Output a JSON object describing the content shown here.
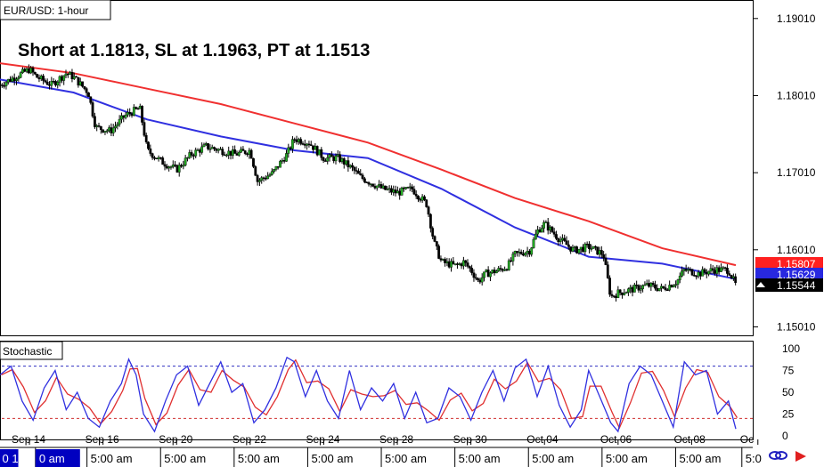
{
  "chart_data": {
    "type": "candlestick",
    "symbol_label": "EUR/USD: 1-hour",
    "headline": "Short at 1.1813, SL at 1.1963, PT at 1.1513",
    "price_axis": {
      "ylim": [
        1.149,
        1.1925
      ],
      "ticks": [
        "1.19010",
        "1.18010",
        "1.17010",
        "1.16010",
        "1.15010"
      ]
    },
    "x_range": [
      0,
      100
    ],
    "date_labels": [
      {
        "x": 4,
        "label": "Sep 14"
      },
      {
        "x": 14,
        "label": "Sep 16"
      },
      {
        "x": 24,
        "label": "Sep 20"
      },
      {
        "x": 34,
        "label": "Sep 22"
      },
      {
        "x": 44,
        "label": "Sep 24"
      },
      {
        "x": 54,
        "label": "Sep 28"
      },
      {
        "x": 64,
        "label": "Sep 30"
      },
      {
        "x": 74,
        "label": "Oct 04"
      },
      {
        "x": 84,
        "label": "Oct 06"
      },
      {
        "x": 94,
        "label": "Oct 08"
      },
      {
        "x": 103,
        "label": "Oc"
      }
    ],
    "time_labels": [
      {
        "x": 2,
        "label": "0 1",
        "selected": true
      },
      {
        "x": 7,
        "label": "0 am",
        "selected": true
      },
      {
        "x": 14,
        "label": "5:00 am"
      },
      {
        "x": 24,
        "label": "5:00 am"
      },
      {
        "x": 34,
        "label": "5:00 am"
      },
      {
        "x": 44,
        "label": "5:00 am"
      },
      {
        "x": 54,
        "label": "5:00 am"
      },
      {
        "x": 64,
        "label": "5:00 am"
      },
      {
        "x": 74,
        "label": "5:00 am"
      },
      {
        "x": 84,
        "label": "5:00 am"
      },
      {
        "x": 94,
        "label": "5:00 am"
      },
      {
        "x": 103,
        "label": "5:0"
      }
    ],
    "price_path": [
      [
        0,
        1.1815
      ],
      [
        2,
        1.1825
      ],
      [
        4,
        1.1835
      ],
      [
        5,
        1.1825
      ],
      [
        7,
        1.1815
      ],
      [
        9,
        1.183
      ],
      [
        10,
        1.1825
      ],
      [
        12,
        1.1805
      ],
      [
        13,
        1.176
      ],
      [
        15,
        1.1755
      ],
      [
        17,
        1.1775
      ],
      [
        19,
        1.1785
      ],
      [
        20,
        1.173
      ],
      [
        22,
        1.1715
      ],
      [
        24,
        1.1705
      ],
      [
        26,
        1.1725
      ],
      [
        28,
        1.1735
      ],
      [
        30,
        1.173
      ],
      [
        32,
        1.1725
      ],
      [
        34,
        1.173
      ],
      [
        35,
        1.169
      ],
      [
        37,
        1.17
      ],
      [
        39,
        1.1725
      ],
      [
        40,
        1.1745
      ],
      [
        42,
        1.174
      ],
      [
        43,
        1.173
      ],
      [
        44,
        1.172
      ],
      [
        46,
        1.172
      ],
      [
        48,
        1.1705
      ],
      [
        49,
        1.1695
      ],
      [
        50,
        1.169
      ],
      [
        52,
        1.168
      ],
      [
        54,
        1.1675
      ],
      [
        56,
        1.168
      ],
      [
        58,
        1.166
      ],
      [
        59,
        1.161
      ],
      [
        60,
        1.1585
      ],
      [
        62,
        1.158
      ],
      [
        63,
        1.1585
      ],
      [
        64,
        1.1575
      ],
      [
        65,
        1.156
      ],
      [
        66,
        1.157
      ],
      [
        68,
        1.1575
      ],
      [
        69,
        1.158
      ],
      [
        70,
        1.1595
      ],
      [
        72,
        1.16
      ],
      [
        73,
        1.1625
      ],
      [
        74,
        1.1635
      ],
      [
        76,
        1.1615
      ],
      [
        78,
        1.16
      ],
      [
        80,
        1.1605
      ],
      [
        82,
        1.1595
      ],
      [
        83,
        1.154
      ],
      [
        84,
        1.1545
      ],
      [
        86,
        1.155
      ],
      [
        88,
        1.1555
      ],
      [
        90,
        1.155
      ],
      [
        92,
        1.156
      ],
      [
        93,
        1.1575
      ],
      [
        95,
        1.157
      ],
      [
        97,
        1.1575
      ],
      [
        99,
        1.1575
      ],
      [
        100,
        1.1555
      ]
    ],
    "series": [
      {
        "name": "",
        "color": "#f03030",
        "values": [
          [
            0,
            1.1843
          ],
          [
            10,
            1.183
          ],
          [
            20,
            1.181
          ],
          [
            30,
            1.179
          ],
          [
            40,
            1.1765
          ],
          [
            50,
            1.174
          ],
          [
            60,
            1.1705
          ],
          [
            70,
            1.1668
          ],
          [
            80,
            1.1638
          ],
          [
            90,
            1.1603
          ],
          [
            100,
            1.1581
          ]
        ]
      },
      {
        "name": "",
        "color": "#3030e0",
        "values": [
          [
            0,
            1.1822
          ],
          [
            10,
            1.1805
          ],
          [
            20,
            1.177
          ],
          [
            30,
            1.1748
          ],
          [
            40,
            1.173
          ],
          [
            50,
            1.172
          ],
          [
            60,
            1.168
          ],
          [
            70,
            1.163
          ],
          [
            80,
            1.1592
          ],
          [
            90,
            1.1583
          ],
          [
            100,
            1.1563
          ]
        ]
      }
    ],
    "price_tags": [
      {
        "label": "1.15807",
        "value": 1.15807,
        "bg": "#ff2020",
        "fg": "#ffffff"
      },
      {
        "label": "1.15629",
        "value": 1.15629,
        "bg": "#2828e0",
        "fg": "#ffffff"
      },
      {
        "label": "1.15544",
        "value": 1.15544,
        "bg": "#000000",
        "fg": "#ffffff"
      }
    ],
    "stochastic": {
      "label": "Stochastic",
      "ylim": [
        0,
        100
      ],
      "ticks": [
        "100",
        "75",
        "50",
        "25",
        "0"
      ],
      "upper_level": 80,
      "lower_level": 20,
      "upper_color": "#3030c0",
      "lower_color": "#d03030",
      "k_color": "#3030e0",
      "d_color": "#e03030",
      "values": [
        [
          0,
          70
        ],
        [
          1.5,
          80
        ],
        [
          3,
          40
        ],
        [
          4.5,
          18
        ],
        [
          6,
          55
        ],
        [
          7.5,
          75
        ],
        [
          9,
          30
        ],
        [
          10.5,
          50
        ],
        [
          12,
          20
        ],
        [
          13.5,
          10
        ],
        [
          15,
          40
        ],
        [
          16.5,
          60
        ],
        [
          17.5,
          88
        ],
        [
          18.5,
          70
        ],
        [
          19.5,
          25
        ],
        [
          21,
          5
        ],
        [
          22.5,
          40
        ],
        [
          24,
          70
        ],
        [
          25.5,
          80
        ],
        [
          27,
          35
        ],
        [
          28.5,
          60
        ],
        [
          30,
          85
        ],
        [
          31.5,
          50
        ],
        [
          33,
          60
        ],
        [
          34.5,
          15
        ],
        [
          36,
          30
        ],
        [
          37.5,
          55
        ],
        [
          39,
          90
        ],
        [
          40,
          85
        ],
        [
          41.5,
          45
        ],
        [
          43,
          75
        ],
        [
          44.5,
          40
        ],
        [
          46,
          20
        ],
        [
          47.5,
          75
        ],
        [
          49,
          30
        ],
        [
          50.5,
          55
        ],
        [
          52,
          40
        ],
        [
          53.5,
          60
        ],
        [
          55,
          20
        ],
        [
          56.5,
          50
        ],
        [
          58,
          15
        ],
        [
          59.5,
          20
        ],
        [
          61,
          55
        ],
        [
          62.5,
          45
        ],
        [
          64,
          18
        ],
        [
          65.5,
          50
        ],
        [
          67,
          75
        ],
        [
          68.5,
          40
        ],
        [
          70,
          78
        ],
        [
          71.5,
          88
        ],
        [
          73,
          45
        ],
        [
          74.5,
          80
        ],
        [
          76,
          35
        ],
        [
          77.5,
          10
        ],
        [
          79,
          30
        ],
        [
          80,
          75
        ],
        [
          81.5,
          45
        ],
        [
          83,
          15
        ],
        [
          84,
          5
        ],
        [
          85.5,
          60
        ],
        [
          87,
          80
        ],
        [
          88.5,
          70
        ],
        [
          90,
          40
        ],
        [
          91.5,
          10
        ],
        [
          93,
          85
        ],
        [
          94.5,
          70
        ],
        [
          96,
          75
        ],
        [
          97.5,
          25
        ],
        [
          99,
          40
        ],
        [
          100,
          8
        ]
      ]
    }
  }
}
